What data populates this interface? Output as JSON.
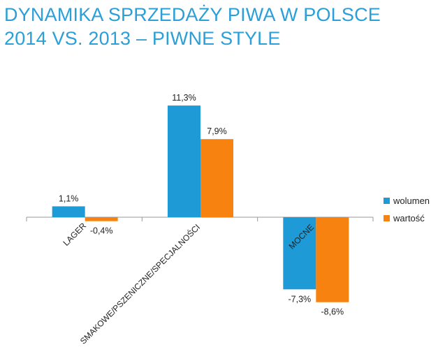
{
  "title": {
    "line1": "DYNAMIKA SPRZEDAŻY PIWA W POLSCE",
    "line2": "2014 VS. 2013 – PIWNE STYLE"
  },
  "chart_data": {
    "type": "bar",
    "categories": [
      "LAGER",
      "SMAKOWE/PSZENICZNE/SPECJALNOŚCI",
      "MOCNE"
    ],
    "series": [
      {
        "name": "wolumen",
        "values": [
          1.1,
          11.3,
          -7.3
        ],
        "labels": [
          "1,1%",
          "11,3%",
          "-7,3%"
        ],
        "color": "#1e9bd7"
      },
      {
        "name": "wartość",
        "values": [
          -0.4,
          7.9,
          -8.6
        ],
        "labels": [
          "-0,4%",
          "7,9%",
          "-8,6%"
        ],
        "color": "#f7820f"
      }
    ],
    "ylim": [
      -10,
      12
    ],
    "xlabel": "",
    "ylabel": "",
    "grid": false,
    "legend_position": "right"
  }
}
